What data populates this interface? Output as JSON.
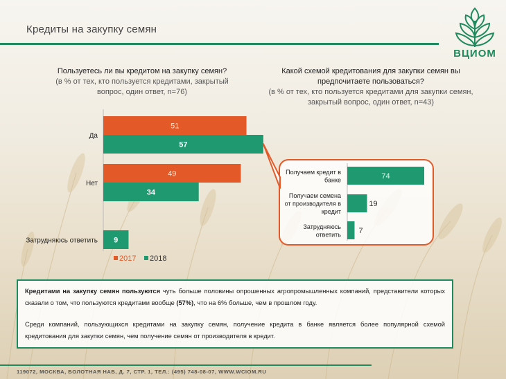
{
  "slide": {
    "title": "Кредиты на закупку семян",
    "logo_text": "ВЦИОМ",
    "footer": "119072, МОСКВА, БОЛОТНАЯ НАБ, Д. 7, СТР. 1, ТЕЛ.: (495) 748-08-07, WWW.WCIOM.RU"
  },
  "colors": {
    "y2017": "#e35a28",
    "y2018": "#1f9a70",
    "accent": "#1f8a5e"
  },
  "question_left": {
    "title": "Пользуетесь ли вы кредитом на закупку семян?",
    "subtitle_1": "(в % от тех, кто пользуется кредитами, закрытый",
    "subtitle_2": "вопрос, один ответ, n=76)"
  },
  "question_right": {
    "title_1": "Какой схемой кредитования для закупки семян вы",
    "title_2": "предпочитаете пользоваться?",
    "subtitle_1": "(в % от тех, кто пользуется кредитами для закупки семян,",
    "subtitle_2": "закрытый вопрос, один ответ, n=43)"
  },
  "chart_data": [
    {
      "type": "bar",
      "orientation": "horizontal",
      "categories": [
        "Да",
        "Нет",
        "Затрудняюсь ответить"
      ],
      "series": [
        {
          "name": "2017",
          "values": [
            51,
            49,
            null
          ]
        },
        {
          "name": "2018",
          "values": [
            57,
            34,
            9
          ]
        }
      ],
      "legend_position": "bottom"
    },
    {
      "type": "bar",
      "orientation": "horizontal",
      "categories": [
        {
          "lines": [
            "Получаем кредит в",
            "банке"
          ]
        },
        {
          "lines": [
            "Получаем семена",
            "от производителя в",
            "кредит"
          ]
        },
        {
          "lines": [
            "Затрудняюсь",
            "ответить"
          ]
        }
      ],
      "values": [
        74,
        19,
        7
      ]
    }
  ],
  "summary": {
    "p1_bold": "Кредитами на закупку семян пользуются",
    "p1_text": " чуть больше половины опрошенных агропромышленных компаний, представители которых сказали о том, что пользуются кредитами вообще ",
    "p1_bold2": "(57%)",
    "p1_text2": ", что на 6% больше, чем в прошлом году.",
    "p2": "Среди компаний, пользующихся кредитами на закупку семян, получение кредита в банке является более популярной схемой кредитования для закупки семян, чем получение семян от производителя в кредит."
  }
}
